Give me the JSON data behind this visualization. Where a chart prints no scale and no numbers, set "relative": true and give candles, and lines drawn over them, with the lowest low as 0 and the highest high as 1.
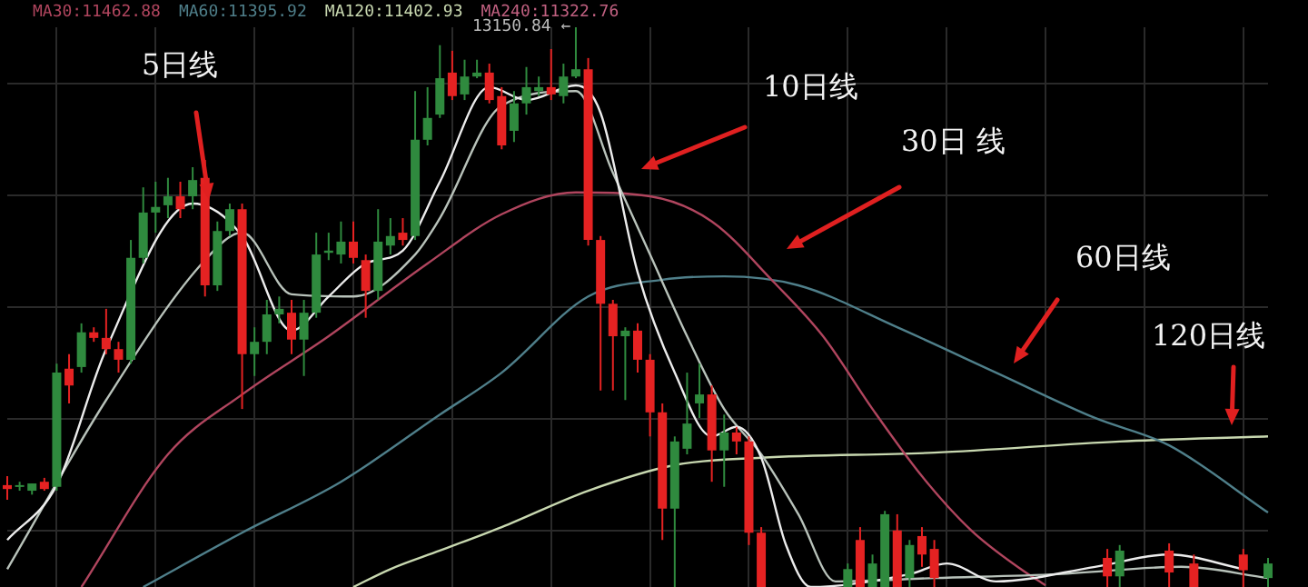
{
  "chart_data": {
    "type": "candlestick",
    "relative": true,
    "tick_labels": false,
    "grid": true,
    "legend": "top left",
    "categories": [
      null,
      null,
      null,
      null,
      null,
      null,
      null,
      null,
      null,
      null,
      null,
      null,
      null,
      null,
      null,
      null,
      null,
      null,
      null,
      null,
      null,
      null,
      null,
      null,
      null,
      null,
      null,
      null,
      null,
      null,
      null,
      null,
      null,
      null,
      null,
      null,
      null,
      null,
      null,
      null,
      null,
      null,
      null,
      null,
      null,
      null,
      null,
      null,
      null,
      null,
      null,
      null,
      null,
      null,
      null,
      null,
      null,
      null,
      null,
      null,
      null,
      null,
      null,
      null,
      null,
      null,
      null,
      null,
      null,
      null,
      null,
      null,
      null,
      null,
      null,
      null,
      null,
      null,
      null,
      null,
      null,
      null,
      null,
      null,
      null,
      null,
      null,
      null,
      null,
      null,
      null,
      null,
      null,
      null,
      null,
      null,
      null,
      null,
      null,
      null,
      null,
      null,
      null
    ],
    "ohlc": [
      [
        0.182,
        0.198,
        0.156,
        0.175
      ],
      [
        0.179,
        0.188,
        0.172,
        0.182
      ],
      [
        0.172,
        0.185,
        0.165,
        0.185
      ],
      [
        0.188,
        0.195,
        0.172,
        0.175
      ],
      [
        0.179,
        0.399,
        0.172,
        0.383
      ],
      [
        0.39,
        0.416,
        0.328,
        0.36
      ],
      [
        0.393,
        0.471,
        0.383,
        0.455
      ],
      [
        0.455,
        0.464,
        0.438,
        0.445
      ],
      [
        0.445,
        0.497,
        0.416,
        0.425
      ],
      [
        0.425,
        0.438,
        0.383,
        0.406
      ],
      [
        0.406,
        0.62,
        0.399,
        0.588
      ],
      [
        0.588,
        0.714,
        0.578,
        0.669
      ],
      [
        0.669,
        0.724,
        0.633,
        0.679
      ],
      [
        0.682,
        0.731,
        0.659,
        0.698
      ],
      [
        0.698,
        0.724,
        0.659,
        0.675
      ],
      [
        0.698,
        0.75,
        0.675,
        0.727
      ],
      [
        0.731,
        0.763,
        0.519,
        0.539
      ],
      [
        0.539,
        0.653,
        0.529,
        0.636
      ],
      [
        0.636,
        0.685,
        0.627,
        0.675
      ],
      [
        0.675,
        0.685,
        0.318,
        0.416
      ],
      [
        0.416,
        0.464,
        0.377,
        0.438
      ],
      [
        0.438,
        0.513,
        0.416,
        0.487
      ],
      [
        0.487,
        0.519,
        0.471,
        0.497
      ],
      [
        0.49,
        0.513,
        0.416,
        0.442
      ],
      [
        0.442,
        0.513,
        0.377,
        0.49
      ],
      [
        0.49,
        0.633,
        0.481,
        0.594
      ],
      [
        0.597,
        0.633,
        0.584,
        0.601
      ],
      [
        0.594,
        0.653,
        0.578,
        0.617
      ],
      [
        0.617,
        0.653,
        0.578,
        0.588
      ],
      [
        0.584,
        0.594,
        0.481,
        0.529
      ],
      [
        0.529,
        0.675,
        0.513,
        0.617
      ],
      [
        0.61,
        0.659,
        0.594,
        0.627
      ],
      [
        0.633,
        0.659,
        0.61,
        0.62
      ],
      [
        0.627,
        0.886,
        0.62,
        0.799
      ],
      [
        0.799,
        0.893,
        0.789,
        0.838
      ],
      [
        0.844,
        0.968,
        0.838,
        0.909
      ],
      [
        0.919,
        0.958,
        0.87,
        0.877
      ],
      [
        0.88,
        0.942,
        0.87,
        0.912
      ],
      [
        0.912,
        0.942,
        0.909,
        0.919
      ],
      [
        0.919,
        0.935,
        0.864,
        0.87
      ],
      [
        0.877,
        0.893,
        0.782,
        0.789
      ],
      [
        0.815,
        0.886,
        0.795,
        0.864
      ],
      [
        0.864,
        0.929,
        0.844,
        0.893
      ],
      [
        0.886,
        0.912,
        0.877,
        0.893
      ],
      [
        0.893,
        0.961,
        0.87,
        0.88
      ],
      [
        0.877,
        0.935,
        0.864,
        0.912
      ],
      [
        0.912,
        1.0,
        0.909,
        0.925
      ],
      [
        0.925,
        0.945,
        0.61,
        0.62
      ],
      [
        0.62,
        0.627,
        0.351,
        0.506
      ],
      [
        0.506,
        0.513,
        0.351,
        0.448
      ],
      [
        0.448,
        0.464,
        0.334,
        0.458
      ],
      [
        0.458,
        0.471,
        0.383,
        0.406
      ],
      [
        0.406,
        0.416,
        0.269,
        0.312
      ],
      [
        0.312,
        0.328,
        0.084,
        0.14
      ],
      [
        0.14,
        0.269,
        0,
        0.26
      ],
      [
        0.247,
        0.383,
        0.237,
        0.292
      ],
      [
        0.328,
        0.399,
        0.302,
        0.344
      ],
      [
        0.344,
        0.36,
        0.188,
        0.244
      ],
      [
        0.244,
        0.308,
        0.179,
        0.276
      ],
      [
        0.276,
        0.286,
        0.237,
        0.26
      ],
      [
        0.26,
        0.269,
        0.075,
        0.097
      ],
      [
        0.097,
        0.107,
        0,
        0
      ],
      null,
      null,
      null,
      null,
      null,
      null,
      [
        0,
        0.042,
        0,
        0.032
      ],
      [
        0.084,
        0.107,
        0,
        0
      ],
      [
        0,
        0.058,
        0,
        0.042
      ],
      [
        0,
        0.136,
        0,
        0.13
      ],
      [
        0.101,
        0.13,
        0,
        0
      ],
      [
        0.016,
        0.084,
        0,
        0.075
      ],
      [
        0.091,
        0.107,
        0.036,
        0.058
      ],
      [
        0.068,
        0.084,
        0,
        0.016
      ],
      null,
      null,
      null,
      null,
      null,
      null,
      null,
      null,
      null,
      null,
      null,
      null,
      null,
      [
        0.052,
        0.068,
        0,
        0.019
      ],
      [
        0.019,
        0.075,
        0,
        0.065
      ],
      null,
      null,
      null,
      [
        0.065,
        0.078,
        0,
        0.026
      ],
      null,
      [
        0.042,
        0.058,
        0,
        0
      ],
      null,
      null,
      null,
      [
        0.058,
        0.068,
        0,
        0.03
      ],
      null,
      [
        0.016,
        0.052,
        0,
        0.042
      ]
    ],
    "colors": [
      "#e52222",
      "#2f8a3e",
      "#2f8a3e",
      "#e52222",
      "#2f8a3e",
      "#e52222",
      "#2f8a3e",
      "#e52222",
      "#e52222",
      "#e52222",
      "#2f8a3e",
      "#2f8a3e",
      "#2f8a3e",
      "#2f8a3e",
      "#e52222",
      "#2f8a3e",
      "#e52222",
      "#2f8a3e",
      "#2f8a3e",
      "#e52222",
      "#2f8a3e",
      "#2f8a3e",
      "#2f8a3e",
      "#e52222",
      "#2f8a3e",
      "#2f8a3e",
      "#2f8a3e",
      "#2f8a3e",
      "#e52222",
      "#e52222",
      "#2f8a3e",
      "#2f8a3e",
      "#e52222",
      "#2f8a3e",
      "#2f8a3e",
      "#2f8a3e",
      "#e52222",
      "#2f8a3e",
      "#2f8a3e",
      "#e52222",
      "#e52222",
      "#2f8a3e",
      "#2f8a3e",
      "#2f8a3e",
      "#e52222",
      "#2f8a3e",
      "#2f8a3e",
      "#e52222",
      "#e52222",
      "#e52222",
      "#2f8a3e",
      "#e52222",
      "#e52222",
      "#e52222",
      "#2f8a3e",
      "#2f8a3e",
      "#2f8a3e",
      "#e52222",
      "#2f8a3e",
      "#e52222",
      "#e52222",
      "#e52222",
      null,
      null,
      null,
      null,
      null,
      null,
      "#2f8a3e",
      "#e52222",
      "#2f8a3e",
      "#2f8a3e",
      "#e52222",
      "#2f8a3e",
      "#e52222",
      "#e52222",
      null,
      null,
      null,
      null,
      null,
      null,
      null,
      null,
      null,
      null,
      null,
      null,
      null,
      "#e52222",
      "#2f8a3e",
      null,
      null,
      null,
      "#e52222",
      null,
      "#e52222",
      null,
      null,
      null,
      "#e52222",
      null,
      "#2f8a3e"
    ],
    "series": [
      {
        "type": "line",
        "color": "#ececec",
        "values": [
          0.084,
          null,
          null,
          null,
          0.182,
          null,
          null,
          null,
          0.425,
          null,
          null,
          null,
          null,
          null,
          null,
          0.685,
          null,
          null,
          null,
          0.627,
          null,
          null,
          null,
          0.458,
          null,
          null,
          0.519,
          null,
          null,
          0.578,
          null,
          null,
          0.601,
          null,
          null,
          0.724,
          null,
          null,
          null,
          0.893,
          null,
          null,
          0.87,
          null,
          null,
          null,
          0.896,
          null,
          0.847,
          null,
          null,
          0.562,
          null,
          null,
          0.383,
          null,
          null,
          0.269,
          null,
          0.286,
          null,
          0.231,
          null,
          0.075,
          null,
          0,
          null,
          null,
          null,
          null,
          null,
          null,
          null,
          0.023,
          null,
          null,
          0.042,
          null,
          null,
          null,
          0.01,
          null,
          null,
          null,
          null,
          null,
          null,
          null,
          0.036,
          null,
          null,
          null,
          null,
          null,
          0.058,
          null,
          null,
          null,
          null,
          null,
          0.032,
          null,
          null
        ]
      },
      {
        "type": "line",
        "color": "#b8c2ba",
        "values": [
          0.032,
          null,
          null,
          null,
          null,
          null,
          null,
          null,
          0.334,
          null,
          null,
          null,
          null,
          null,
          null,
          null,
          0.584,
          null,
          null,
          0.633,
          null,
          null,
          null,
          0.523,
          null,
          null,
          null,
          null,
          0.519,
          null,
          null,
          null,
          null,
          0.594,
          null,
          0.659,
          null,
          null,
          null,
          null,
          0.86,
          null,
          null,
          null,
          null,
          null,
          0.886,
          null,
          null,
          0.74,
          null,
          null,
          0.594,
          null,
          null,
          0.448,
          null,
          null,
          0.318,
          null,
          null,
          0.237,
          null,
          null,
          0.13,
          null,
          null,
          0.01,
          null,
          null,
          null,
          null,
          null,
          null,
          null,
          0.016,
          null,
          null,
          null,
          null,
          null,
          null,
          null,
          null,
          null,
          0.023,
          null,
          null,
          null,
          null,
          null,
          null,
          null,
          null,
          null,
          0.036,
          null,
          null,
          null,
          null,
          null,
          null,
          0.016
        ]
      },
      {
        "type": "line",
        "name": "MA30:11462.88",
        "color": "#b0455e",
        "values": [
          null,
          null,
          null,
          null,
          null,
          null,
          0,
          null,
          null,
          null,
          null,
          null,
          null,
          0.237,
          null,
          null,
          null,
          null,
          null,
          0.344,
          null,
          null,
          null,
          null,
          null,
          null,
          0.448,
          null,
          null,
          null,
          null,
          null,
          null,
          null,
          0.578,
          null,
          null,
          null,
          null,
          null,
          0.666,
          null,
          null,
          null,
          null,
          null,
          0.705,
          null,
          null,
          null,
          null,
          null,
          0.698,
          null,
          null,
          null,
          null,
          0.653,
          null,
          null,
          null,
          null,
          0.545,
          null,
          null,
          null,
          0.448,
          null,
          null,
          null,
          0.318,
          null,
          null,
          null,
          0.198,
          null,
          null,
          null,
          0.101,
          null,
          null,
          null,
          0.032,
          null,
          0.003,
          null,
          null,
          null,
          null,
          null,
          null,
          null,
          null,
          null,
          null,
          null,
          null,
          null,
          null,
          null,
          null,
          null,
          null
        ]
      },
      {
        "type": "line",
        "name": "MA60:11395.92",
        "color": "#4f7f8a",
        "values": [
          null,
          null,
          null,
          null,
          null,
          null,
          null,
          null,
          null,
          null,
          null,
          0,
          null,
          null,
          null,
          null,
          null,
          null,
          null,
          0.097,
          null,
          null,
          null,
          null,
          null,
          null,
          null,
          0.188,
          null,
          null,
          null,
          null,
          null,
          null,
          null,
          0.308,
          null,
          null,
          null,
          null,
          0.383,
          null,
          null,
          null,
          null,
          null,
          null,
          0.519,
          null,
          null,
          null,
          null,
          null,
          0.549,
          null,
          null,
          null,
          null,
          0.555,
          null,
          null,
          null,
          null,
          null,
          0.539,
          null,
          null,
          null,
          null,
          null,
          null,
          null,
          0.464,
          null,
          null,
          null,
          null,
          null,
          null,
          null,
          0.383,
          null,
          null,
          null,
          null,
          null,
          null,
          null,
          0.302,
          null,
          null,
          null,
          null,
          null,
          0.253,
          null,
          null,
          null,
          null,
          null,
          null,
          null,
          0.133
        ]
      },
      {
        "type": "line",
        "name": "MA120:11402.93",
        "color": "#c8d8b0",
        "values": [
          null,
          null,
          null,
          null,
          null,
          null,
          null,
          null,
          null,
          null,
          null,
          null,
          null,
          null,
          null,
          null,
          null,
          null,
          null,
          null,
          null,
          null,
          null,
          null,
          null,
          null,
          null,
          null,
          0,
          null,
          null,
          0.032,
          null,
          null,
          null,
          0.065,
          null,
          null,
          null,
          null,
          0.107,
          null,
          null,
          null,
          null,
          null,
          null,
          0.172,
          null,
          null,
          null,
          null,
          null,
          null,
          0.218,
          null,
          null,
          null,
          null,
          null,
          null,
          0.231,
          null,
          null,
          null,
          null,
          null,
          null,
          null,
          null,
          null,
          null,
          null,
          null,
          null,
          0.24,
          null,
          null,
          null,
          null,
          null,
          null,
          null,
          null,
          null,
          null,
          null,
          null,
          null,
          null,
          0.26,
          null,
          null,
          null,
          null,
          null,
          null,
          null,
          null,
          null,
          null,
          null,
          0.269
        ]
      }
    ],
    "annotations": [
      "5日线",
      "10日线",
      "30日 线",
      "60日线",
      "120日线",
      "MA240:11322.76",
      "13150.84 ←"
    ]
  }
}
